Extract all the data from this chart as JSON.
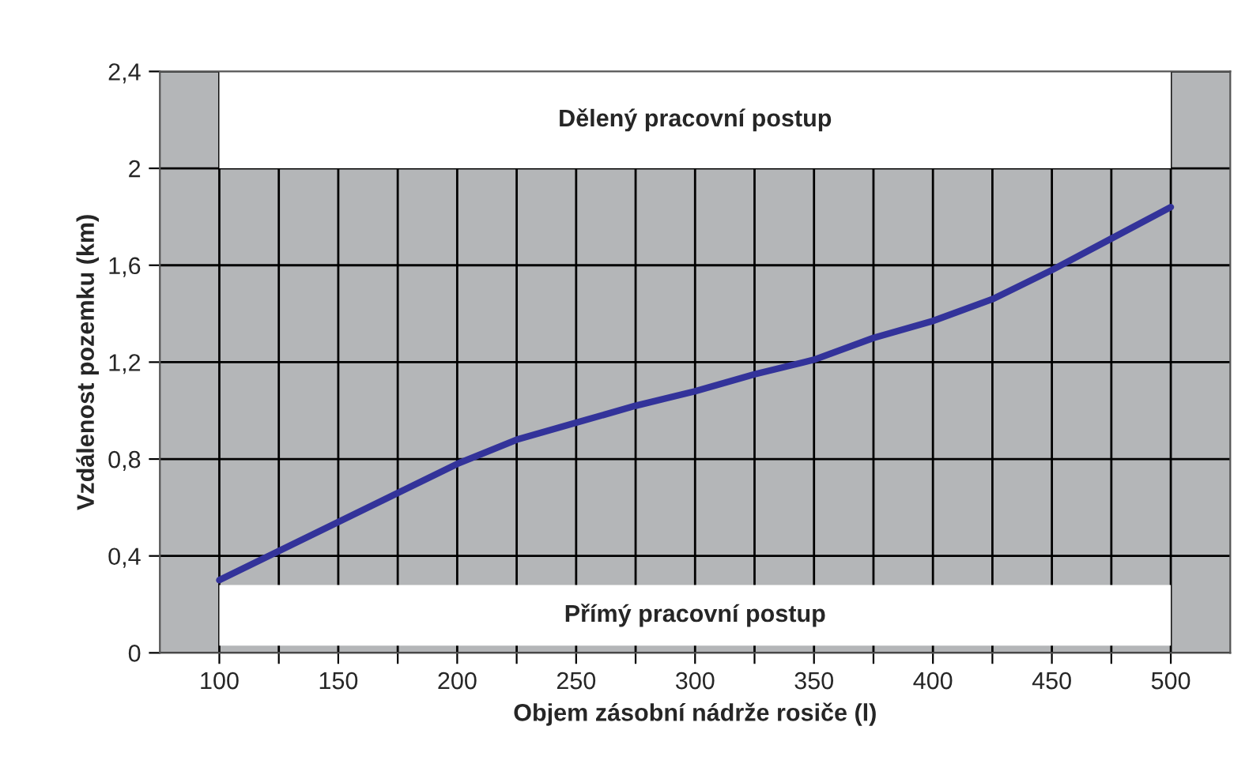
{
  "chart_data": {
    "type": "line",
    "xlabel": "Objem zásobní nádrže rosiče (l)",
    "ylabel": "Vzdálenost pozemku (km)",
    "x": [
      100,
      125,
      150,
      175,
      200,
      225,
      250,
      275,
      300,
      325,
      350,
      375,
      400,
      425,
      450,
      475,
      500
    ],
    "series": [
      {
        "color": "#33339a",
        "values": [
          0.3,
          0.42,
          0.54,
          0.66,
          0.78,
          0.88,
          0.95,
          1.02,
          1.08,
          1.15,
          1.21,
          1.3,
          1.37,
          1.46,
          1.58,
          1.71,
          1.84
        ]
      }
    ],
    "xlim": [
      75,
      525
    ],
    "ylim": [
      0,
      2.4
    ],
    "xticks": [
      100,
      {
        "value": 125,
        "label": null
      },
      150,
      {
        "value": 175,
        "label": null
      },
      200,
      {
        "value": 225,
        "label": null
      },
      250,
      {
        "value": 275,
        "label": null
      },
      300,
      {
        "value": 325,
        "label": null
      },
      350,
      {
        "value": 375,
        "label": null
      },
      400,
      {
        "value": 425,
        "label": null
      },
      450,
      {
        "value": 475,
        "label": null
      },
      500
    ],
    "yticks": [
      {
        "value": 0,
        "label": "0"
      },
      {
        "value": 0.4,
        "label": "0,4"
      },
      {
        "value": 0.8,
        "label": "0,8"
      },
      {
        "value": 1.2,
        "label": "1,2"
      },
      {
        "value": 1.6,
        "label": "1,6"
      },
      {
        "value": 2,
        "label": "2"
      },
      {
        "value": 2.4,
        "label": "2,4"
      }
    ],
    "bands": [
      {
        "axis": "y",
        "from": 2.0,
        "to": 2.4,
        "label": "Dělený pracovní postup",
        "color": "#ffffff"
      },
      {
        "axis": "y",
        "from": 0.03,
        "to": 0.28,
        "label": "Přímý pracovní postup",
        "color": "#ffffff"
      }
    ],
    "grid": true,
    "legend": false,
    "marker": "none",
    "line_style": "solid"
  }
}
